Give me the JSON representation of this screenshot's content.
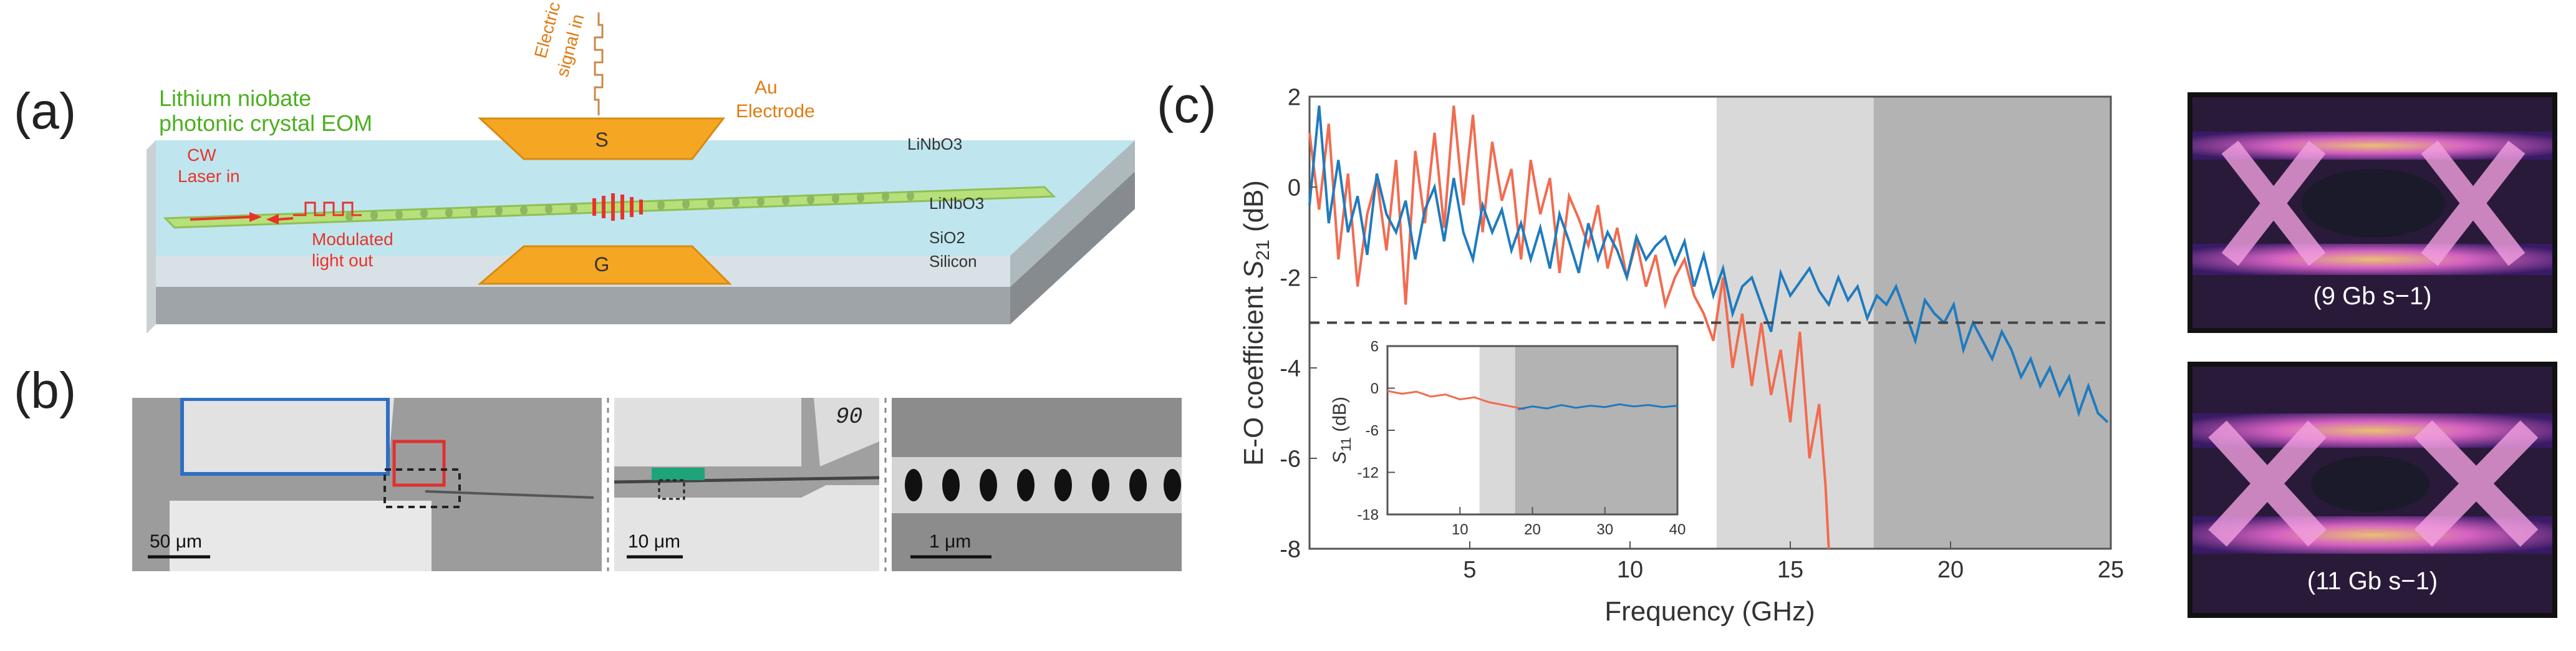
{
  "panels": {
    "a": "(a)",
    "b": "(b)",
    "c": "(c)"
  },
  "device_diagram": {
    "title_line1": "Lithium niobate",
    "title_line2": "photonic crystal EOM",
    "electric_signal_line1": "Electric",
    "electric_signal_line2": "signal in",
    "au_line1": "Au",
    "au_line2": "Electrode",
    "pad_s": "S",
    "pad_g": "G",
    "cw_line1": "CW",
    "cw_line2": "Laser in",
    "modulated_line1": "Modulated",
    "modulated_line2": "light out",
    "layer_linbo3_top": "LiNbO3",
    "layer_linbo3": "LiNbO3",
    "layer_sio2": "SiO2",
    "layer_silicon": "Silicon",
    "colors": {
      "top_face": "#bfe6ef",
      "waveguide": "#b7e07a",
      "electrode": "#f5a623",
      "text_green": "#4caf1f",
      "text_red": "#e8332a",
      "text_orange": "#e07b12"
    }
  },
  "sem_images": {
    "scale1": "50 μm",
    "scale2": "10 μm",
    "scale3": "1 μm",
    "corner_label": "90"
  },
  "chart_data": {
    "type": "line",
    "xlabel": "Frequency (GHz)",
    "ylabel_prefix": "E-O coefficient ",
    "ylabel_var": "S",
    "ylabel_sub": "21",
    "ylabel_suffix": " (dB)",
    "xlim": [
      0,
      25
    ],
    "ylim": [
      -8,
      2
    ],
    "x_ticks": [
      "5",
      "10",
      "15",
      "20",
      "25"
    ],
    "y_ticks": [
      "2",
      "0",
      "-2",
      "-4",
      "-6",
      "-8"
    ],
    "shaded_regions": [
      {
        "x0": 12.7,
        "x1": 17.6,
        "color": "#d9d9d9"
      },
      {
        "x0": 17.6,
        "x1": 25,
        "color": "#b3b3b3"
      }
    ],
    "reference_line_db": -3,
    "series": [
      {
        "name": "red",
        "color": "#f26b4f",
        "x": [
          0,
          0.3,
          0.6,
          0.9,
          1.2,
          1.5,
          1.8,
          2.1,
          2.4,
          2.7,
          3.0,
          3.3,
          3.6,
          3.9,
          4.2,
          4.5,
          4.8,
          5.1,
          5.4,
          5.7,
          6.0,
          6.3,
          6.6,
          6.9,
          7.2,
          7.5,
          7.8,
          8.1,
          8.4,
          8.7,
          9.0,
          9.3,
          9.6,
          9.9,
          10.2,
          10.5,
          10.8,
          11.1,
          11.4,
          11.7,
          12.0,
          12.3,
          12.6,
          12.9,
          13.2,
          13.5,
          13.8,
          14.1,
          14.4,
          14.7,
          15.0,
          15.3,
          15.6,
          15.9,
          16.1,
          16.2
        ],
        "y": [
          1.2,
          -0.5,
          1.4,
          -1.6,
          0.3,
          -2.2,
          -0.6,
          0.2,
          -1.4,
          0.6,
          -2.6,
          0.8,
          -0.8,
          1.2,
          -0.9,
          1.8,
          -0.4,
          1.6,
          -1.0,
          1.0,
          -0.3,
          0.4,
          -1.6,
          0.6,
          -0.6,
          0.2,
          -1.9,
          -0.2,
          -0.7,
          -1.3,
          -0.4,
          -1.8,
          -0.9,
          -2.0,
          -1.2,
          -2.2,
          -1.5,
          -2.6,
          -2.0,
          -1.6,
          -2.4,
          -2.8,
          -3.4,
          -2.0,
          -4.0,
          -2.8,
          -4.4,
          -3.0,
          -4.6,
          -3.6,
          -5.2,
          -3.2,
          -6.0,
          -4.8,
          -6.6,
          -8.0
        ]
      },
      {
        "name": "blue",
        "color": "#1f7bbf",
        "x": [
          0,
          0.3,
          0.6,
          0.9,
          1.2,
          1.5,
          1.8,
          2.1,
          2.4,
          2.7,
          3.0,
          3.3,
          3.6,
          3.9,
          4.2,
          4.5,
          4.8,
          5.1,
          5.4,
          5.7,
          6.0,
          6.3,
          6.6,
          6.9,
          7.2,
          7.5,
          7.8,
          8.1,
          8.4,
          8.7,
          9.0,
          9.3,
          9.6,
          9.9,
          10.2,
          10.5,
          10.8,
          11.1,
          11.4,
          11.7,
          12.0,
          12.3,
          12.6,
          12.9,
          13.2,
          13.5,
          13.8,
          14.1,
          14.4,
          14.7,
          15.0,
          15.3,
          15.6,
          15.9,
          16.2,
          16.5,
          16.8,
          17.1,
          17.4,
          17.7,
          18.0,
          18.3,
          18.6,
          18.9,
          19.2,
          19.5,
          19.8,
          20.1,
          20.4,
          20.7,
          21.0,
          21.3,
          21.6,
          21.9,
          22.2,
          22.5,
          22.8,
          23.1,
          23.4,
          23.7,
          24.0,
          24.3,
          24.6,
          24.9
        ],
        "y": [
          -0.4,
          1.8,
          -0.8,
          0.6,
          -1.0,
          -0.2,
          -1.5,
          0.3,
          -0.6,
          -1.0,
          -0.3,
          -1.6,
          -0.5,
          0.0,
          -1.2,
          0.2,
          -1.0,
          -1.6,
          -0.4,
          -1.0,
          -0.5,
          -1.4,
          -0.8,
          -1.6,
          -0.9,
          -1.8,
          -0.6,
          -1.2,
          -1.9,
          -0.8,
          -1.6,
          -1.0,
          -1.4,
          -2.0,
          -1.1,
          -1.6,
          -1.3,
          -1.1,
          -1.7,
          -1.2,
          -2.2,
          -1.5,
          -2.4,
          -1.8,
          -2.8,
          -2.2,
          -2.0,
          -2.6,
          -3.2,
          -1.9,
          -2.4,
          -2.1,
          -1.8,
          -2.3,
          -2.6,
          -2.0,
          -2.5,
          -2.2,
          -2.9,
          -2.4,
          -2.6,
          -2.2,
          -2.8,
          -3.4,
          -2.5,
          -2.8,
          -3.0,
          -2.6,
          -3.6,
          -3.0,
          -3.4,
          -3.8,
          -3.2,
          -3.6,
          -4.2,
          -3.8,
          -4.4,
          -4.0,
          -4.6,
          -4.2,
          -5.0,
          -4.4,
          -5.0,
          -5.2
        ]
      }
    ],
    "inset": {
      "ylabel_var": "S",
      "ylabel_sub": "11",
      "ylabel_suffix": " (dB)",
      "xlim": [
        0,
        40
      ],
      "ylim": [
        -18,
        6
      ],
      "x_ticks": [
        "10",
        "20",
        "30",
        "40"
      ],
      "y_ticks": [
        "6",
        "0",
        "-6",
        "-12",
        "-18"
      ],
      "shaded_regions": [
        {
          "x0": 12.7,
          "x1": 17.6,
          "color": "#d9d9d9"
        },
        {
          "x0": 17.6,
          "x1": 40,
          "color": "#b3b3b3"
        }
      ],
      "series": [
        {
          "name": "red",
          "color": "#f26b4f",
          "x": [
            0,
            2,
            4,
            6,
            8,
            10,
            12,
            14,
            16,
            18,
            19
          ],
          "y": [
            -0.4,
            -0.8,
            -0.5,
            -1.2,
            -0.9,
            -1.6,
            -1.3,
            -2.0,
            -2.4,
            -2.8,
            -3.0
          ]
        },
        {
          "name": "blue",
          "color": "#1f7bbf",
          "x": [
            18,
            20,
            22,
            24,
            26,
            28,
            30,
            32,
            34,
            36,
            38,
            40
          ],
          "y": [
            -3.0,
            -2.6,
            -2.9,
            -2.4,
            -2.8,
            -2.5,
            -2.7,
            -2.3,
            -2.6,
            -2.4,
            -2.7,
            -2.5
          ]
        }
      ]
    }
  },
  "eye_diagrams": [
    {
      "label": "(9 Gb s−1)"
    },
    {
      "label": "(11 Gb s−1)"
    }
  ]
}
